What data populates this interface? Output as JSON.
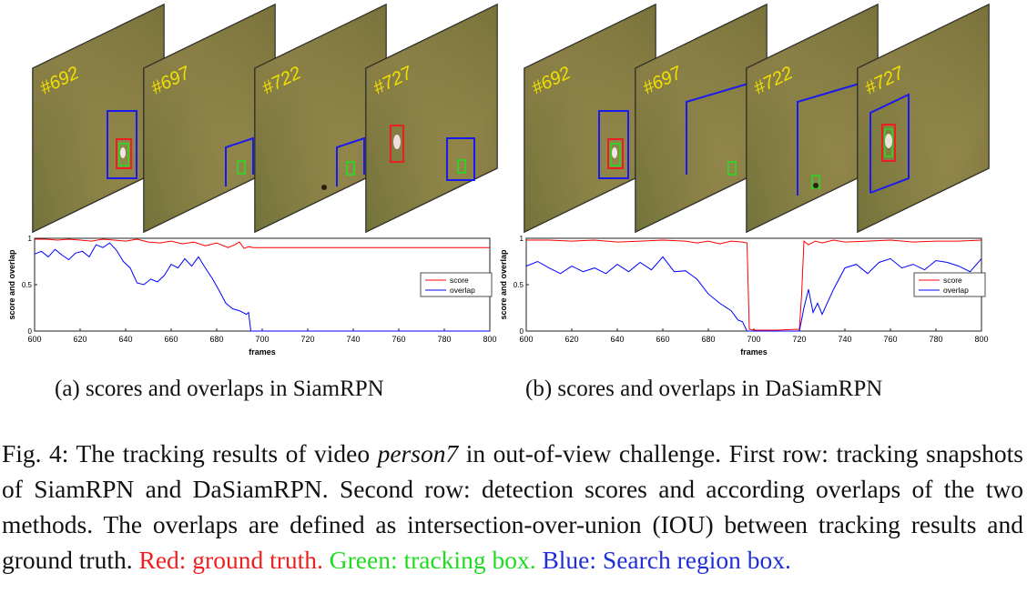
{
  "figure": {
    "panels": [
      {
        "id": "a",
        "frame_labels": [
          "#692",
          "#697",
          "#722",
          "#727"
        ],
        "subcaption": "(a) scores and overlaps in SiamRPN",
        "chart_data": {
          "type": "line",
          "xlabel": "frames",
          "ylabel": "score and overlap",
          "xlim": [
            600,
            800
          ],
          "ylim": [
            0,
            1
          ],
          "xticks": [
            "600",
            "620",
            "640",
            "660",
            "680",
            "700",
            "720",
            "740",
            "760",
            "780",
            "800"
          ],
          "yticks": [
            "0",
            "0.5",
            "1"
          ],
          "legend_placement": "right",
          "series": [
            {
              "name": "score",
              "color": "#ff0000",
              "x": [
                600,
                605,
                610,
                615,
                620,
                625,
                630,
                635,
                640,
                645,
                650,
                655,
                660,
                665,
                670,
                675,
                680,
                685,
                688,
                690,
                692,
                694,
                696,
                700,
                720,
                740,
                760,
                780,
                800
              ],
              "y": [
                0.99,
                0.99,
                0.98,
                0.99,
                0.98,
                0.97,
                0.99,
                0.98,
                0.97,
                0.99,
                0.96,
                0.95,
                0.97,
                0.94,
                0.96,
                0.92,
                0.95,
                0.9,
                0.93,
                0.96,
                0.89,
                0.91,
                0.9,
                0.9,
                0.9,
                0.9,
                0.9,
                0.9,
                0.9
              ]
            },
            {
              "name": "overlap",
              "color": "#0000ff",
              "x": [
                600,
                603,
                606,
                609,
                612,
                615,
                618,
                621,
                624,
                627,
                630,
                633,
                636,
                639,
                642,
                645,
                648,
                651,
                654,
                657,
                660,
                663,
                666,
                669,
                672,
                675,
                678,
                681,
                684,
                687,
                690,
                693,
                694,
                695,
                700,
                720,
                740,
                760,
                780,
                800
              ],
              "y": [
                0.83,
                0.86,
                0.8,
                0.88,
                0.82,
                0.77,
                0.84,
                0.86,
                0.8,
                0.93,
                0.9,
                0.95,
                0.87,
                0.75,
                0.68,
                0.52,
                0.5,
                0.56,
                0.53,
                0.6,
                0.72,
                0.68,
                0.78,
                0.7,
                0.8,
                0.68,
                0.57,
                0.44,
                0.3,
                0.24,
                0.22,
                0.18,
                0.2,
                0.0,
                0.0,
                0.0,
                0.0,
                0.0,
                0.0,
                0.0
              ]
            }
          ]
        }
      },
      {
        "id": "b",
        "frame_labels": [
          "#692",
          "#697",
          "#722",
          "#727"
        ],
        "subcaption": "(b) scores and overlaps in DaSiamRPN",
        "chart_data": {
          "type": "line",
          "xlabel": "frames",
          "ylabel": "score and overlap",
          "xlim": [
            600,
            800
          ],
          "ylim": [
            0,
            1
          ],
          "xticks": [
            "600",
            "620",
            "640",
            "660",
            "680",
            "700",
            "720",
            "740",
            "760",
            "780",
            "800"
          ],
          "yticks": [
            "0",
            "0.5",
            "1"
          ],
          "legend_placement": "right",
          "series": [
            {
              "name": "score",
              "color": "#ff0000",
              "x": [
                600,
                610,
                620,
                630,
                640,
                650,
                660,
                670,
                675,
                680,
                685,
                690,
                695,
                697,
                698,
                700,
                710,
                720,
                721,
                722,
                724,
                727,
                730,
                735,
                740,
                750,
                760,
                770,
                780,
                790,
                800
              ],
              "y": [
                0.98,
                0.98,
                0.97,
                0.98,
                0.96,
                0.97,
                0.98,
                0.97,
                0.95,
                0.97,
                0.94,
                0.97,
                0.96,
                0.95,
                0.02,
                0.01,
                0.01,
                0.02,
                0.4,
                0.97,
                0.93,
                0.97,
                0.95,
                0.98,
                0.96,
                0.97,
                0.98,
                0.96,
                0.97,
                0.97,
                0.98
              ]
            },
            {
              "name": "overlap",
              "color": "#0000ff",
              "x": [
                600,
                605,
                610,
                615,
                620,
                625,
                630,
                635,
                640,
                645,
                650,
                655,
                660,
                665,
                670,
                675,
                680,
                685,
                690,
                693,
                695,
                697,
                698,
                700,
                710,
                720,
                722,
                724,
                726,
                728,
                730,
                735,
                740,
                745,
                750,
                755,
                760,
                765,
                770,
                775,
                780,
                785,
                790,
                795,
                800
              ],
              "y": [
                0.7,
                0.75,
                0.68,
                0.62,
                0.7,
                0.64,
                0.68,
                0.62,
                0.72,
                0.64,
                0.74,
                0.66,
                0.8,
                0.64,
                0.65,
                0.56,
                0.4,
                0.3,
                0.22,
                0.12,
                0.1,
                0.0,
                0.0,
                0.0,
                0.0,
                0.0,
                0.25,
                0.45,
                0.2,
                0.3,
                0.18,
                0.45,
                0.68,
                0.72,
                0.62,
                0.74,
                0.78,
                0.68,
                0.72,
                0.66,
                0.76,
                0.74,
                0.7,
                0.64,
                0.78
              ]
            }
          ]
        }
      }
    ],
    "caption": {
      "label": "Fig. 4:",
      "part1": " The tracking results of video ",
      "video": "person7",
      "part2": " in out-of-view challenge. First row: tracking snapshots of SiamRPN and DaSiamRPN. Second row: detection scores and according overlaps of the two methods. The overlaps are defined as intersection-over-union (IOU) between tracking results and ground truth. ",
      "red": "Red: ground truth.",
      "green": " Green: tracking box.",
      "blue": " Blue: Search region box."
    },
    "colors": {
      "ground_truth": "#ff0000",
      "tracking_box": "#00e000",
      "search_region": "#0000ff",
      "frame_label": "#f4e000"
    }
  }
}
